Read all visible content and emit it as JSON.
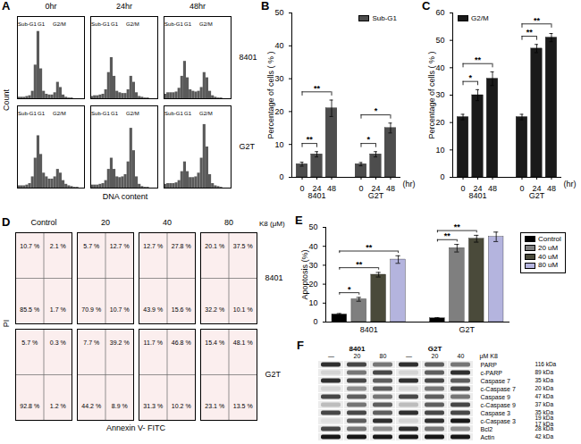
{
  "chart_data": [
    {
      "panel": "A",
      "type": "histogram",
      "columns": [
        "0hr",
        "24hr",
        "48hr"
      ],
      "rows": [
        "8401",
        "G2T"
      ],
      "xlabel": "DNA content",
      "ylabel": "Count",
      "tick_labels": false,
      "color": "#5a5a5a",
      "bins": [
        0,
        1,
        2,
        3,
        4,
        5,
        6,
        7,
        8,
        9,
        10,
        11,
        12,
        13,
        14,
        15,
        16,
        17,
        18,
        19,
        20,
        21,
        22,
        23,
        24
      ],
      "xlim": [
        0,
        24
      ],
      "ylim": [
        0,
        110
      ],
      "gate_labels": [
        {
          "label": "Sub-G1",
          "x": 3.5
        },
        {
          "label": "G1",
          "x": 8.5
        },
        {
          "label": "G2/M",
          "x": 15
        }
      ],
      "counts": [
        [
          [
            2,
            2,
            2,
            3,
            4,
            10,
            45,
            90,
            40,
            10,
            6,
            5,
            5,
            8,
            22,
            15,
            5,
            2,
            1,
            1,
            0,
            0,
            0,
            0
          ],
          [
            3,
            4,
            4,
            5,
            6,
            12,
            35,
            55,
            30,
            10,
            8,
            7,
            7,
            12,
            30,
            22,
            8,
            3,
            2,
            1,
            1,
            0,
            0,
            0
          ],
          [
            6,
            8,
            8,
            8,
            9,
            14,
            30,
            50,
            28,
            12,
            10,
            9,
            10,
            15,
            35,
            28,
            10,
            4,
            2,
            1,
            1,
            0,
            0,
            0
          ]
        ],
        [
          [
            3,
            3,
            3,
            4,
            6,
            15,
            40,
            70,
            45,
            20,
            15,
            12,
            12,
            15,
            25,
            20,
            10,
            5,
            3,
            2,
            1,
            1,
            0,
            0
          ],
          [
            4,
            4,
            4,
            5,
            6,
            10,
            25,
            40,
            25,
            15,
            14,
            15,
            18,
            35,
            80,
            50,
            15,
            5,
            2,
            1,
            1,
            0,
            0,
            0
          ],
          [
            5,
            6,
            6,
            6,
            7,
            10,
            22,
            35,
            22,
            14,
            14,
            15,
            20,
            40,
            85,
            55,
            18,
            6,
            3,
            2,
            1,
            0,
            0,
            0
          ]
        ]
      ]
    },
    {
      "panel": "B",
      "type": "bar",
      "groups": [
        "8401",
        "G2T"
      ],
      "categories": [
        "0",
        "24",
        "48"
      ],
      "xlabel": "(hr)",
      "ylabel": "Percentage of cells ( % )",
      "series": [
        {
          "name": "Sub-G1",
          "color": "#4d4d4d",
          "values": [
            [
              4,
              7,
              21
            ],
            [
              4,
              7,
              15
            ]
          ],
          "errors": [
            [
              0.6,
              0.8,
              2.5
            ],
            [
              0.5,
              0.8,
              1.5
            ]
          ]
        }
      ],
      "ylim": [
        0,
        50
      ],
      "yticks": [
        0,
        10,
        20,
        30,
        40,
        50
      ],
      "legend": "top-right",
      "significance": [
        {
          "group": "8401",
          "from": "0",
          "to": "24",
          "label": "**"
        },
        {
          "group": "8401",
          "from": "0",
          "to": "48",
          "label": "**"
        },
        {
          "group": "G2T",
          "from": "0",
          "to": "24",
          "label": "*"
        },
        {
          "group": "G2T",
          "from": "0",
          "to": "48",
          "label": "*"
        }
      ]
    },
    {
      "panel": "C",
      "type": "bar",
      "groups": [
        "8401",
        "G2T"
      ],
      "categories": [
        "0",
        "24",
        "48"
      ],
      "xlabel": "(hr)",
      "ylabel": "Percentage of cells ( % )",
      "series": [
        {
          "name": "G2/M",
          "color": "#1a1a1a",
          "values": [
            [
              22,
              30,
              36
            ],
            [
              22,
              47,
              51
            ]
          ],
          "errors": [
            [
              1,
              2,
              2.5
            ],
            [
              1,
              1.5,
              1.5
            ]
          ]
        }
      ],
      "ylim": [
        0,
        60
      ],
      "yticks": [
        0,
        10,
        20,
        30,
        40,
        50,
        60
      ],
      "legend": "top-left",
      "significance": [
        {
          "group": "8401",
          "from": "0",
          "to": "24",
          "label": "*"
        },
        {
          "group": "8401",
          "from": "0",
          "to": "48",
          "label": "**"
        },
        {
          "group": "G2T",
          "from": "0",
          "to": "24",
          "label": "**"
        },
        {
          "group": "G2T",
          "from": "0",
          "to": "48",
          "label": "**"
        }
      ]
    },
    {
      "panel": "D",
      "type": "quadrant",
      "columns": [
        "Control",
        "20",
        "40",
        "80"
      ],
      "column_title": "K8 (μM)",
      "rows": [
        "8401",
        "G2T"
      ],
      "xlabel": "Annexin V- FITC",
      "ylabel": "PI",
      "tick_labels": false,
      "values": [
        [
          [
            10.7,
            2.1,
            85.5,
            1.7
          ],
          [
            5.7,
            12.7,
            70.9,
            10.7
          ],
          [
            12.7,
            27.8,
            43.9,
            15.6
          ],
          [
            20.1,
            37.5,
            32.2,
            10.1
          ]
        ],
        [
          [
            5.7,
            0.3,
            92.8,
            1.2
          ],
          [
            7.7,
            39.2,
            44.2,
            8.9
          ],
          [
            11.7,
            46.8,
            31.3,
            10.2
          ],
          [
            15.4,
            48.1,
            23.1,
            13.5
          ]
        ]
      ],
      "value_labels": [
        [
          [
            "10.7 %",
            "2.1 %",
            "85.5 %",
            "1.7 %"
          ],
          [
            "5.7 %",
            "12.7 %",
            "70.9 %",
            "10.7 %"
          ],
          [
            "12.7 %",
            "27.8 %",
            "43.9 %",
            "15.6 %"
          ],
          [
            "20.1 %",
            "37.5 %",
            "32.2 %",
            "10.1 %"
          ]
        ],
        [
          [
            "5.7 %",
            "0.3 %",
            "92.8 %",
            "1.2 %"
          ],
          [
            "7.7 %",
            "39.2 %",
            "44.2 %",
            "8.9 %"
          ],
          [
            "11.7 %",
            "46.8 %",
            "31.3 %",
            "10.2 %"
          ],
          [
            "15.4 %",
            "48.1 %",
            "23.1 %",
            "13.5 %"
          ]
        ]
      ]
    },
    {
      "panel": "E",
      "type": "bar",
      "groups": [
        "8401",
        "G2T"
      ],
      "ylabel": "Apoptosis (%)",
      "series": [
        {
          "name": "Control",
          "color": "#000000",
          "values": [
            4,
            2
          ],
          "errors": [
            0.5,
            0.3
          ]
        },
        {
          "name": "20 uM",
          "color": "#7f7f7f",
          "values": [
            12,
            39
          ],
          "errors": [
            1,
            2
          ]
        },
        {
          "name": "40 uM",
          "color": "#4a4a3a",
          "values": [
            25,
            44
          ],
          "errors": [
            1.2,
            1.8
          ]
        },
        {
          "name": "80 uM",
          "color": "#b4b4de",
          "values": [
            33,
            45
          ],
          "errors": [
            2,
            2.5
          ]
        }
      ],
      "ylim": [
        0,
        50
      ],
      "yticks": [
        0,
        10,
        20,
        30,
        40,
        50
      ],
      "legend": "right",
      "significance": [
        {
          "group": "8401",
          "from": "Control",
          "to": "20 uM",
          "label": "*"
        },
        {
          "group": "8401",
          "from": "Control",
          "to": "40 uM",
          "label": "**"
        },
        {
          "group": "8401",
          "from": "Control",
          "to": "80 uM",
          "label": "**"
        },
        {
          "group": "G2T",
          "from": "Control",
          "to": "20 uM",
          "label": "**"
        },
        {
          "group": "G2T",
          "from": "Control",
          "to": "40 uM",
          "label": "**"
        }
      ]
    },
    {
      "panel": "F",
      "type": "blot",
      "lane_groups": [
        "8401",
        "G2T"
      ],
      "lanes": [
        "—",
        "20",
        "80",
        "—",
        "20",
        "40"
      ],
      "lane_title": "μM K8",
      "intensity_range": [
        0,
        1
      ],
      "rows": [
        {
          "name": "PARP",
          "size": [
            "116 kDa"
          ],
          "intensity": [
            0.8,
            0.7,
            0.5,
            0.8,
            0.6,
            0.5
          ]
        },
        {
          "name": "c-PARP",
          "size": [
            "89 kDa"
          ],
          "intensity": [
            0.1,
            0.5,
            0.7,
            0.1,
            0.6,
            0.8
          ]
        },
        {
          "name": "Caspase 7",
          "size": [
            "35 kDa"
          ],
          "intensity": [
            0.8,
            0.7,
            0.6,
            0.8,
            0.7,
            0.6
          ]
        },
        {
          "name": "c-Caspase 7",
          "size": [
            "20 kDa"
          ],
          "intensity": [
            0.1,
            0.4,
            0.6,
            0.1,
            0.5,
            0.7
          ]
        },
        {
          "name": "Caspase 9",
          "size": [
            "47 kDa"
          ],
          "intensity": [
            0.7,
            0.6,
            0.5,
            0.7,
            0.6,
            0.5
          ]
        },
        {
          "name": "c-Caspase 9",
          "size": [
            "37 kDa"
          ],
          "intensity": [
            0.2,
            0.5,
            0.6,
            0.2,
            0.6,
            0.7
          ]
        },
        {
          "name": "Caspase 3",
          "size": [
            "35 kDa"
          ],
          "intensity": [
            0.7,
            0.7,
            0.6,
            0.8,
            0.7,
            0.7
          ]
        },
        {
          "name": "c-Caspase 3",
          "size": [
            "19 kDa",
            "17 kDa"
          ],
          "intensity": [
            0.05,
            0.6,
            0.8,
            0.1,
            0.8,
            0.9
          ]
        },
        {
          "name": "Bcl2",
          "size": [
            "28 kDa"
          ],
          "intensity": [
            0.7,
            0.5,
            0.4,
            0.8,
            0.5,
            0.4
          ]
        },
        {
          "name": "Actin",
          "size": [
            "42 kDa"
          ],
          "intensity": [
            0.9,
            0.9,
            0.9,
            0.9,
            0.9,
            0.9
          ]
        }
      ]
    }
  ]
}
